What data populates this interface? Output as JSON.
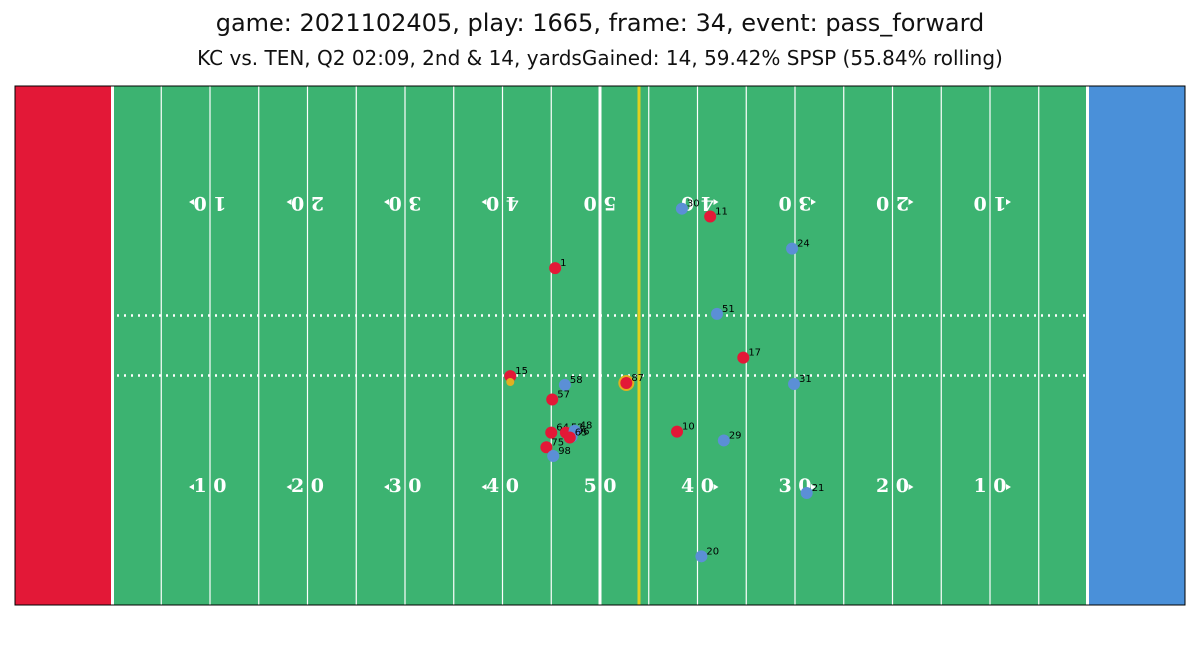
{
  "header": {
    "title": "game: 2021102405, play: 1665, frame: 34, event: pass_forward",
    "subtitle": "KC vs. TEN, Q2 02:09, 2nd & 14, yardsGained: 14, 59.42% SPSP (55.84% rolling)"
  },
  "colors": {
    "field": "#3cb371",
    "left_endzone": "#e31837",
    "right_endzone": "#4a90d9",
    "team_red": "#e31837",
    "team_blue": "#5b8fd6",
    "football": "#e0b020",
    "first_down_line": "#e0d020",
    "line": "#ffffff"
  },
  "yard_numbers_top": [
    "1 0",
    "2 0",
    "3 0",
    "4 0",
    "5 0",
    "4 0",
    "3 0",
    "2 0",
    "1 0"
  ],
  "yard_numbers_bottom": [
    "1 0",
    "2 0",
    "3 0",
    "4 0",
    "5 0",
    "4 0",
    "3 0",
    "2 0",
    "1 0"
  ],
  "first_down_yardline": 64,
  "players": [
    {
      "team": "blue",
      "jersey": "30",
      "x": 68.4,
      "y": 40.7
    },
    {
      "team": "red",
      "jersey": "11",
      "x": 71.3,
      "y": 39.9
    },
    {
      "team": "blue",
      "jersey": "24",
      "x": 79.7,
      "y": 36.6
    },
    {
      "team": "red",
      "jersey": "1",
      "x": 55.4,
      "y": 34.6
    },
    {
      "team": "blue",
      "jersey": "51",
      "x": 72.0,
      "y": 29.9
    },
    {
      "team": "red",
      "jersey": "17",
      "x": 74.7,
      "y": 25.4
    },
    {
      "team": "red",
      "jersey": "15",
      "x": 50.8,
      "y": 23.5
    },
    {
      "team": "blue",
      "jersey": "58",
      "x": 56.4,
      "y": 22.6
    },
    {
      "team": "red",
      "jersey": "87",
      "x": 62.7,
      "y": 22.8,
      "highlight": true
    },
    {
      "team": "blue",
      "jersey": "31",
      "x": 79.9,
      "y": 22.7
    },
    {
      "team": "red",
      "jersey": "57",
      "x": 55.1,
      "y": 21.1
    },
    {
      "team": "red",
      "jersey": "10",
      "x": 67.9,
      "y": 17.8
    },
    {
      "team": "red",
      "jersey": "64",
      "x": 55.0,
      "y": 17.7
    },
    {
      "team": "red",
      "jersey": "52",
      "x": 56.5,
      "y": 17.7
    },
    {
      "team": "blue",
      "jersey": "96",
      "x": 57.1,
      "y": 17.3
    },
    {
      "team": "blue",
      "jersey": "48",
      "x": 57.4,
      "y": 17.9
    },
    {
      "team": "red",
      "jersey": "65",
      "x": 56.9,
      "y": 17.2
    },
    {
      "team": "blue",
      "jersey": "29",
      "x": 72.7,
      "y": 16.9
    },
    {
      "team": "red",
      "jersey": "75",
      "x": 54.5,
      "y": 16.2
    },
    {
      "team": "blue",
      "jersey": "98",
      "x": 55.2,
      "y": 15.3
    },
    {
      "team": "blue",
      "jersey": "21",
      "x": 81.2,
      "y": 11.5
    },
    {
      "team": "blue",
      "jersey": "20",
      "x": 70.4,
      "y": 5.0
    }
  ],
  "football": {
    "x": 50.8,
    "y": 22.9
  }
}
